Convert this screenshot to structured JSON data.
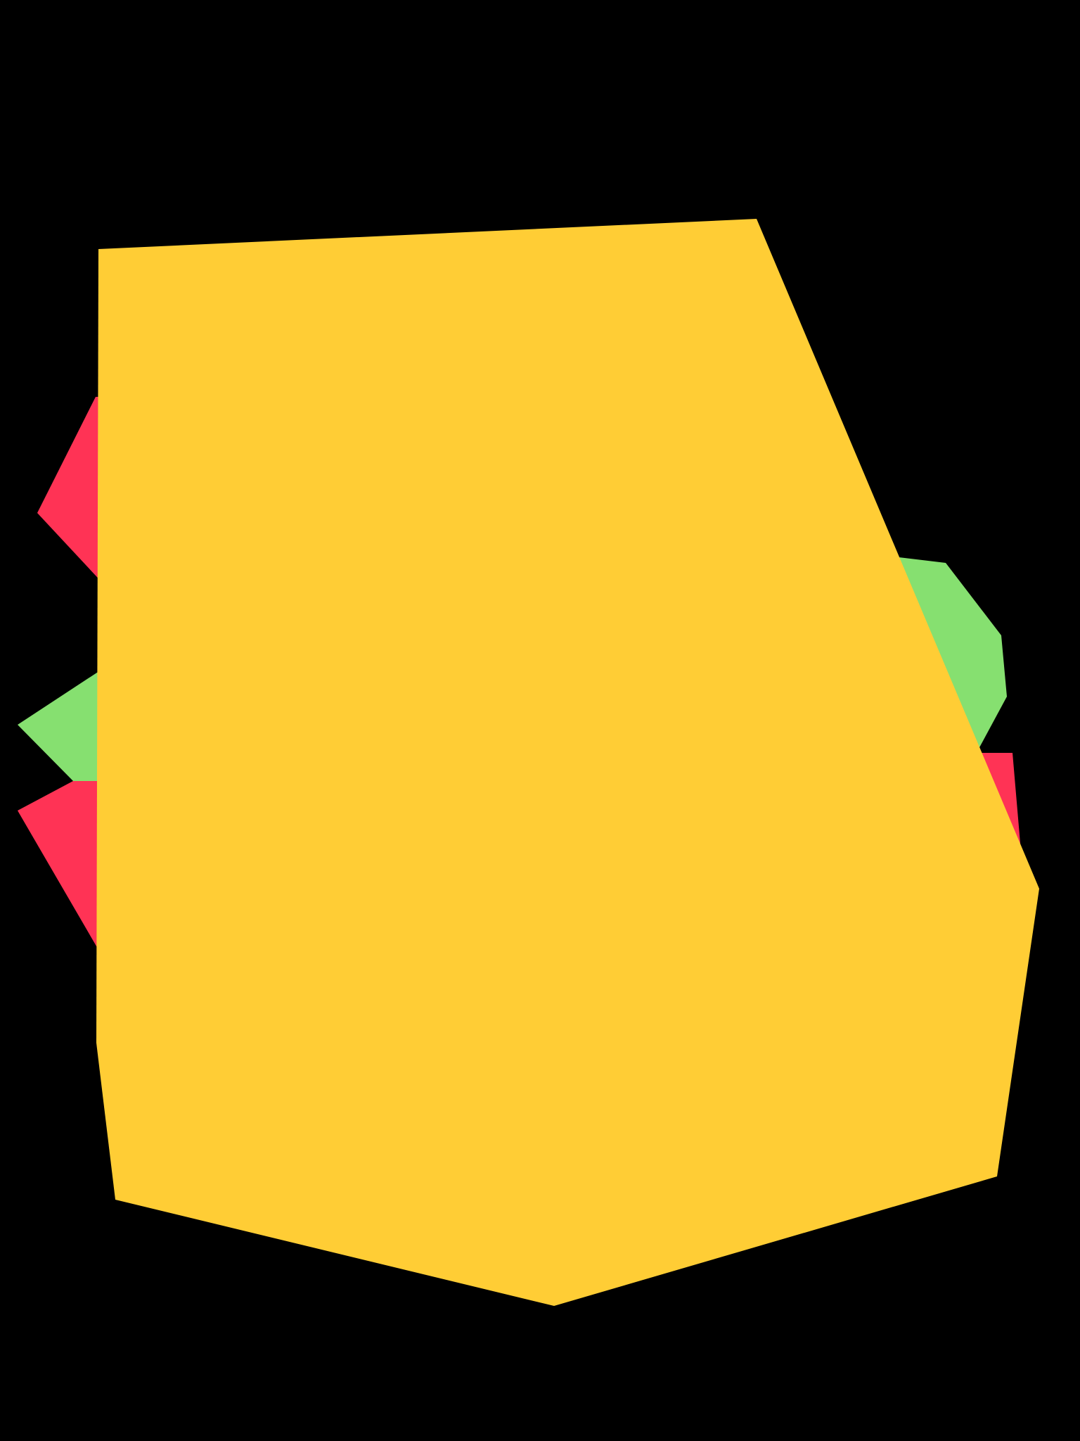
{
  "canvas": {
    "background": "#000000"
  },
  "palette": {
    "yellow": "#FFCD35",
    "red": "#FF3355",
    "green": "#86E070"
  },
  "shapes": [
    {
      "name": "red-shard-upper-left",
      "color": "red"
    },
    {
      "name": "green-shard-left",
      "color": "green"
    },
    {
      "name": "red-shard-lower-left",
      "color": "red"
    },
    {
      "name": "green-shard-right",
      "color": "green"
    },
    {
      "name": "red-shard-right",
      "color": "red"
    },
    {
      "name": "yellow-main-polygon",
      "color": "yellow"
    }
  ]
}
